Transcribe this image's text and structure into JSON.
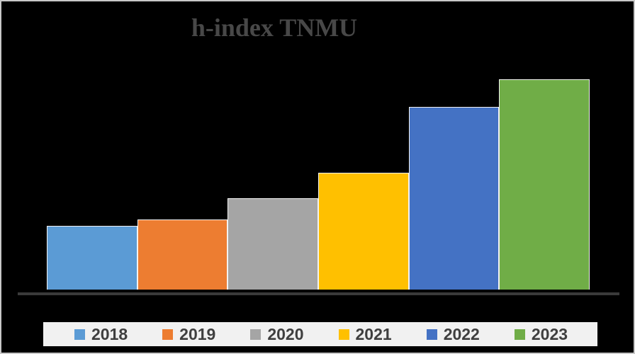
{
  "window": {
    "background": "#000000",
    "frame_border": "#c8c8c8"
  },
  "chart_data": {
    "type": "bar",
    "title": "h-index TNMU",
    "categories": [
      "2018",
      "2019",
      "2020",
      "2021",
      "2022",
      "2023"
    ],
    "values": [
      30,
      33,
      43,
      55,
      86,
      99
    ],
    "xlabel": "",
    "ylabel": "",
    "ylim": [
      0,
      110
    ],
    "grid": false,
    "x_axis_tick_labels_visible": false,
    "y_axis_tick_labels_visible": false,
    "legend_position": "bottom",
    "bar_colors": [
      "#5B9BD5",
      "#ED7D31",
      "#A5A5A5",
      "#FFC000",
      "#4472C4",
      "#70AD47"
    ]
  },
  "colors": {
    "title_text": "#484848",
    "axis_line": "#3a3a3a",
    "bar_border": "#f2f2f2",
    "legend_background": "#f1f1f1",
    "legend_text": "#3f3f3f"
  }
}
